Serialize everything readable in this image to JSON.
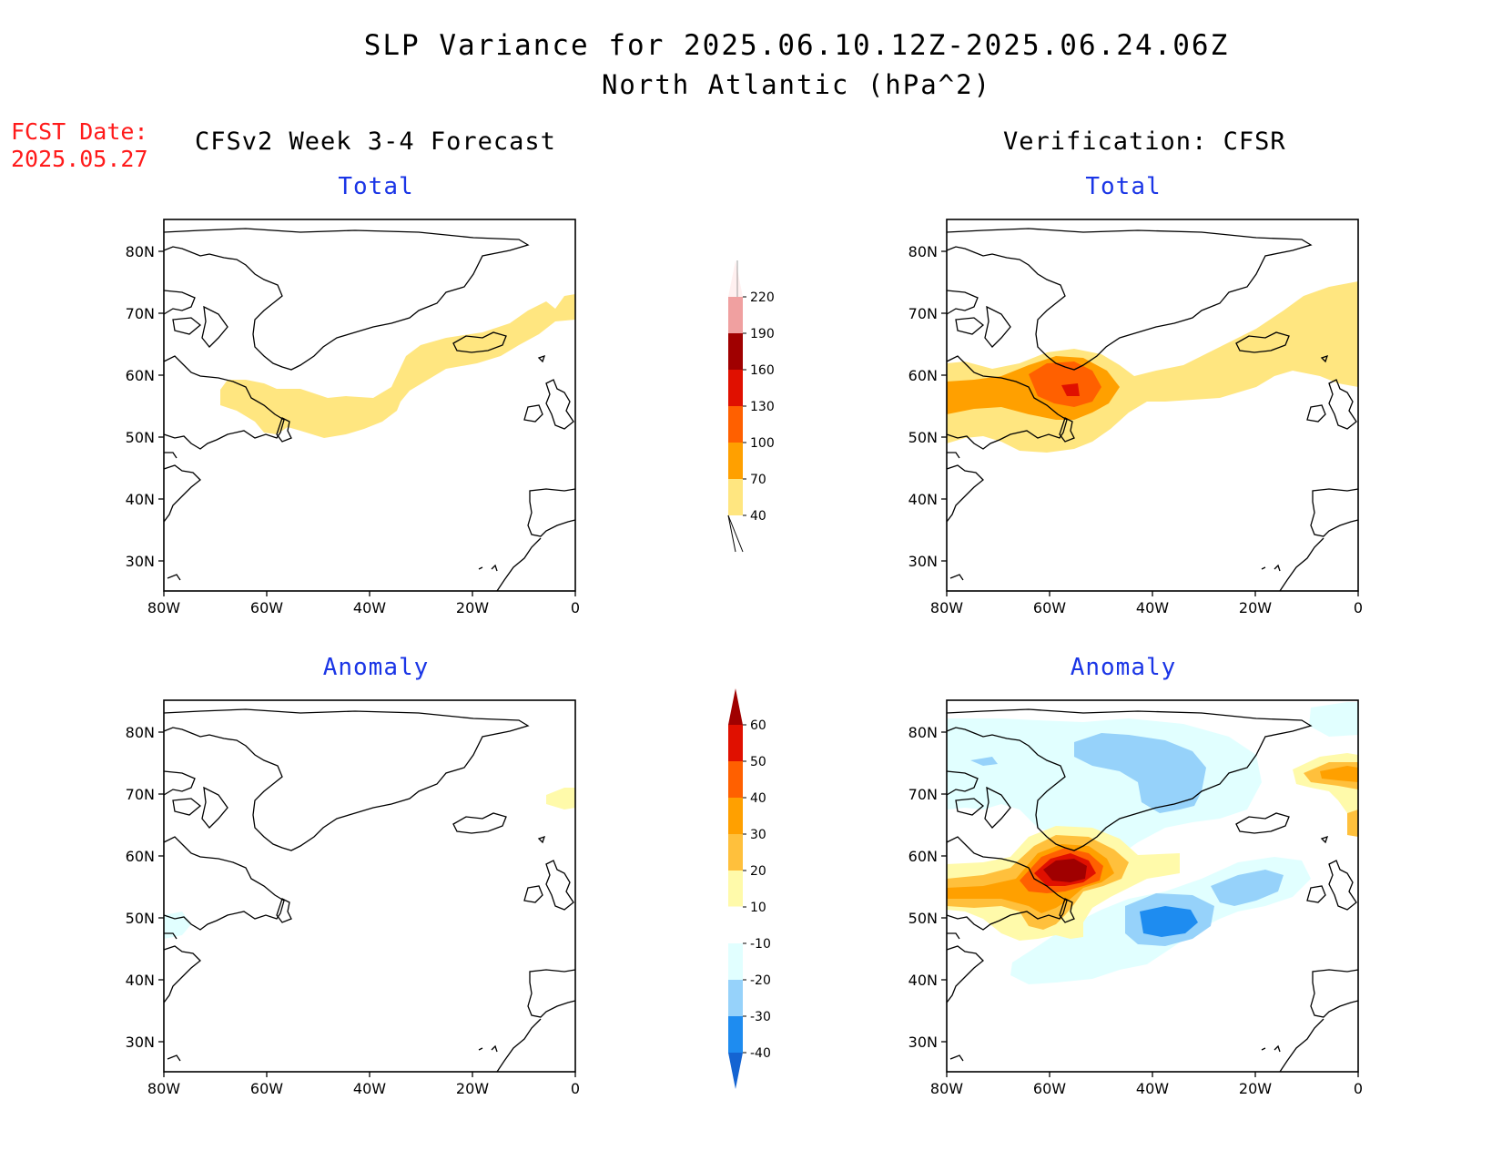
{
  "title_line1": "SLP Variance for 2025.06.10.12Z-2025.06.24.06Z",
  "title_line2": "North Atlantic (hPa^2)",
  "fcst_date_label": "FCST Date:",
  "fcst_date_value": "2025.05.27",
  "left_column_title": "CFSv2 Week 3-4 Forecast",
  "right_column_title": "Verification: CFSR",
  "panels": [
    {
      "id": "fcst-total",
      "title": "Total"
    },
    {
      "id": "verif-total",
      "title": "Total"
    },
    {
      "id": "fcst-anomaly",
      "title": "Anomaly"
    },
    {
      "id": "verif-anomaly",
      "title": "Anomaly"
    }
  ],
  "lat_ticks": [
    "80N",
    "70N",
    "60N",
    "50N",
    "40N",
    "30N"
  ],
  "lon_ticks": [
    "80W",
    "60W",
    "40W",
    "20W",
    "0"
  ],
  "total_colorbar": {
    "levels": [
      "40",
      "70",
      "100",
      "130",
      "160",
      "190",
      "220"
    ],
    "colors": [
      "#ffe680",
      "#ffa000",
      "#ff6000",
      "#e01000",
      "#a00000",
      "#f0a0a0",
      "#fff0f0"
    ]
  },
  "anomaly_colorbar": {
    "levels": [
      "-40",
      "-30",
      "-20",
      "-10",
      "10",
      "20",
      "30",
      "40",
      "50",
      "60"
    ],
    "colors": [
      "#1464d2",
      "#1e8cf0",
      "#96d2fa",
      "#e1ffff",
      "#ffffff",
      "#fffaaa",
      "#ffc03c",
      "#ffa000",
      "#ff6000",
      "#e01000",
      "#a00000"
    ]
  }
}
